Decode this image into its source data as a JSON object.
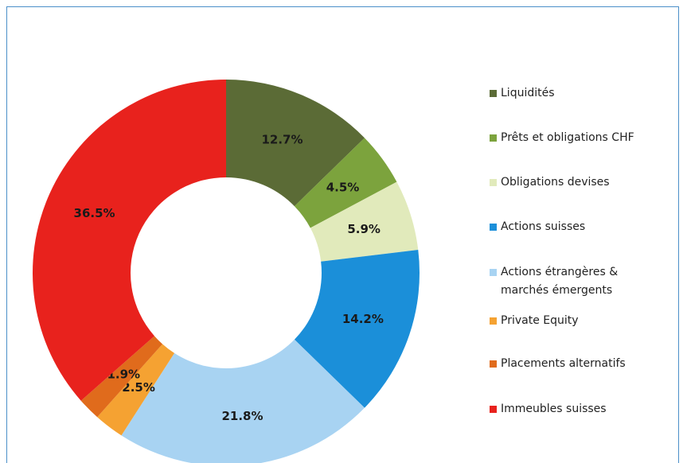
{
  "chart_data": {
    "type": "pie",
    "categories": [
      "Liquidités",
      "Prêts et obligations CHF",
      "Obligations devises",
      "Actions suisses",
      "Actions étrangères & marchés émergents",
      "Private Equity",
      "Placements alternatifs",
      "Immeubles suisses"
    ],
    "values": [
      12.7,
      4.5,
      5.9,
      14.2,
      21.8,
      2.5,
      1.9,
      36.5
    ],
    "value_labels": [
      "12.7%",
      "4.5%",
      "5.9%",
      "14.2%",
      "21.8%",
      "2.5%",
      "1.9%",
      "36.5%"
    ],
    "colors": [
      "#5b6b36",
      "#7ca33d",
      "#e1eabb",
      "#1b8fd9",
      "#a8d3f2",
      "#f5a232",
      "#e06b1c",
      "#e8221d"
    ],
    "legend": "right"
  }
}
